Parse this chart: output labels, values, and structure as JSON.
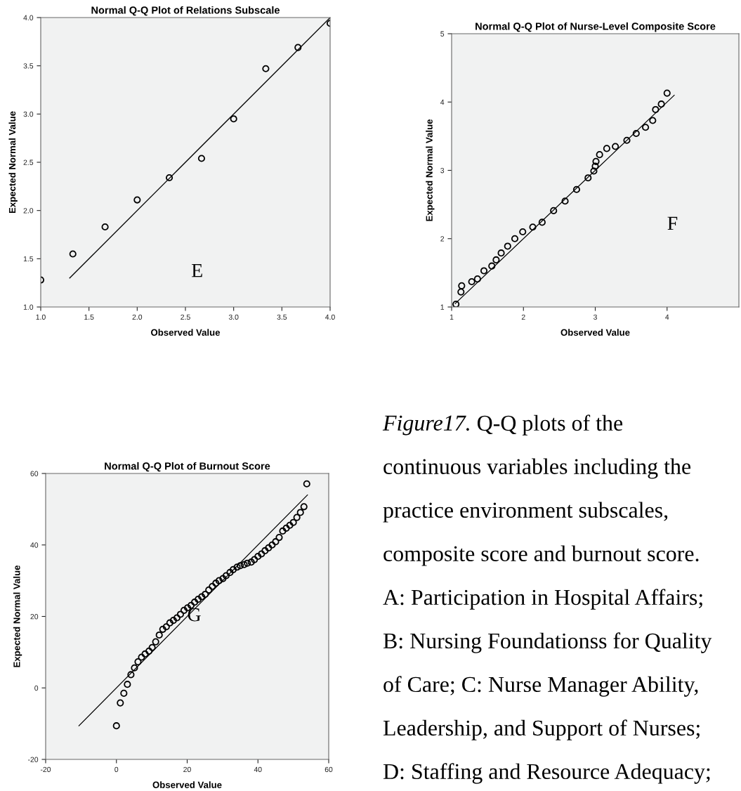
{
  "chart_data": [
    {
      "type": "scatter",
      "title": "Normal Q-Q Plot of Relations Subscale",
      "xlabel": "Observed Value",
      "ylabel": "Expected Normal Value",
      "xlim": [
        1.0,
        4.0
      ],
      "ylim": [
        1.0,
        4.0
      ],
      "xticks": [
        {
          "value": 1.0,
          "label": "1.0"
        },
        1.5,
        {
          "value": 2.0,
          "label": "2.0"
        },
        2.5,
        {
          "value": 3.0,
          "label": "3.0"
        },
        3.5,
        {
          "value": 4.0,
          "label": "4.0"
        }
      ],
      "yticks": [
        {
          "value": 1.0,
          "label": "1.0"
        },
        1.5,
        {
          "value": 2.0,
          "label": "2.0"
        },
        2.5,
        {
          "value": 3.0,
          "label": "3.0"
        },
        3.5,
        {
          "value": 4.0,
          "label": "4.0"
        }
      ],
      "annotations": [
        "E"
      ],
      "series": [
        {
          "type": "scatter",
          "marker": "circle",
          "color": "#000000",
          "x": [
            1.0,
            1.333,
            1.667,
            2.0,
            2.333,
            2.667,
            3.0,
            3.333,
            3.667,
            4.0
          ],
          "values": [
            1.28,
            1.55,
            1.83,
            2.11,
            2.34,
            2.54,
            2.95,
            3.47,
            3.69,
            3.94
          ]
        },
        {
          "type": "line",
          "color": "#000000",
          "x": [
            1.3,
            4.0
          ],
          "values": [
            1.3,
            4.0
          ]
        }
      ]
    },
    {
      "type": "scatter",
      "title": "Normal Q-Q Plot of Nurse-Level Composite Score",
      "xlabel": "Observed Value",
      "ylabel": "Expected Normal Value",
      "xlim": [
        1,
        5
      ],
      "ylim": [
        1,
        5
      ],
      "xticks": [
        1,
        2,
        3,
        4
      ],
      "yticks": [
        1,
        2,
        3,
        4,
        5
      ],
      "annotations": [
        "F"
      ],
      "series": [
        {
          "type": "scatter",
          "marker": "circle",
          "color": "#000000",
          "x": [
            1.06,
            1.13,
            1.14,
            1.28,
            1.36,
            1.45,
            1.56,
            1.62,
            1.69,
            1.78,
            1.88,
            1.99,
            2.13,
            2.26,
            2.42,
            2.58,
            2.74,
            2.9,
            2.98,
            3.0,
            3.01,
            3.06,
            3.16,
            3.28,
            3.44,
            3.57,
            3.7,
            3.8,
            3.84,
            3.92,
            4.0
          ],
          "values": [
            1.04,
            1.22,
            1.31,
            1.37,
            1.41,
            1.53,
            1.6,
            1.69,
            1.79,
            1.89,
            2.0,
            2.1,
            2.17,
            2.24,
            2.41,
            2.55,
            2.72,
            2.89,
            2.99,
            3.06,
            3.13,
            3.23,
            3.32,
            3.35,
            3.44,
            3.54,
            3.63,
            3.73,
            3.89,
            3.97,
            4.13
          ]
        },
        {
          "type": "line",
          "color": "#000000",
          "x": [
            1.05,
            4.1
          ],
          "values": [
            1.05,
            4.1
          ]
        }
      ]
    },
    {
      "type": "scatter",
      "title": "Normal Q-Q Plot of Burnout Score",
      "xlabel": "Observed Value",
      "ylabel": "Expected Normal Value",
      "xlim": [
        -20,
        60
      ],
      "ylim": [
        -20,
        60
      ],
      "xticks": [
        -20,
        0,
        20,
        40,
        60
      ],
      "yticks": [
        -20,
        0,
        20,
        40,
        60
      ],
      "annotations": [
        "G"
      ],
      "series": [
        {
          "type": "scatter",
          "marker": "circle",
          "color": "#000000",
          "x": [
            0,
            1.1,
            2.1,
            3.1,
            4.1,
            5.1,
            6.1,
            7.1,
            8.1,
            9.2,
            10.1,
            11.1,
            12.1,
            13.1,
            14.1,
            15.1,
            16.1,
            17.1,
            18.1,
            19.1,
            20.1,
            21.1,
            22.1,
            23.1,
            24.1,
            25.1,
            26.1,
            27.1,
            28.1,
            29.0,
            30.1,
            31.0,
            32.1,
            33.0,
            34.1,
            35.0,
            36.1,
            37.0,
            38.1,
            39.0,
            40.0,
            41.0,
            42.0,
            43.0,
            44.0,
            45.0,
            46.0,
            47.0,
            48.0,
            49.0,
            50.0,
            51.0,
            52.0,
            53.0,
            53.8
          ],
          "values": [
            -10.6,
            -4.2,
            -1.5,
            1.0,
            3.7,
            5.6,
            7.3,
            8.6,
            9.5,
            10.3,
            11.3,
            12.9,
            14.8,
            16.4,
            17.1,
            18.2,
            18.9,
            19.6,
            20.6,
            21.7,
            22.4,
            23.1,
            24.0,
            24.8,
            25.5,
            26.2,
            27.4,
            28.4,
            29.3,
            30.0,
            30.6,
            31.4,
            32.3,
            33.1,
            33.8,
            34.2,
            34.5,
            34.9,
            35.2,
            35.9,
            36.8,
            37.5,
            38.4,
            39.2,
            40.0,
            40.9,
            42.1,
            43.9,
            44.7,
            45.5,
            46.3,
            47.7,
            49.1,
            50.7,
            57.1
          ]
        },
        {
          "type": "line",
          "color": "#000000",
          "x": [
            -10.6,
            54.0
          ],
          "values": [
            -10.6,
            54.0
          ]
        }
      ]
    },
    {
      "type": "other",
      "title": "Figure17.",
      "annotations": [
        "Q-Q plots of the",
        "continuous variables including the",
        "practice environment subscales,",
        "composite score and burnout score.",
        "A: Participation in Hospital Affairs;",
        "B: Nursing Foundationss for Quality",
        "of Care; C: Nurse Manager Ability,",
        "Leadership, and Support of Nurses;",
        "D: Staffing and Resource Adequacy;"
      ]
    }
  ]
}
